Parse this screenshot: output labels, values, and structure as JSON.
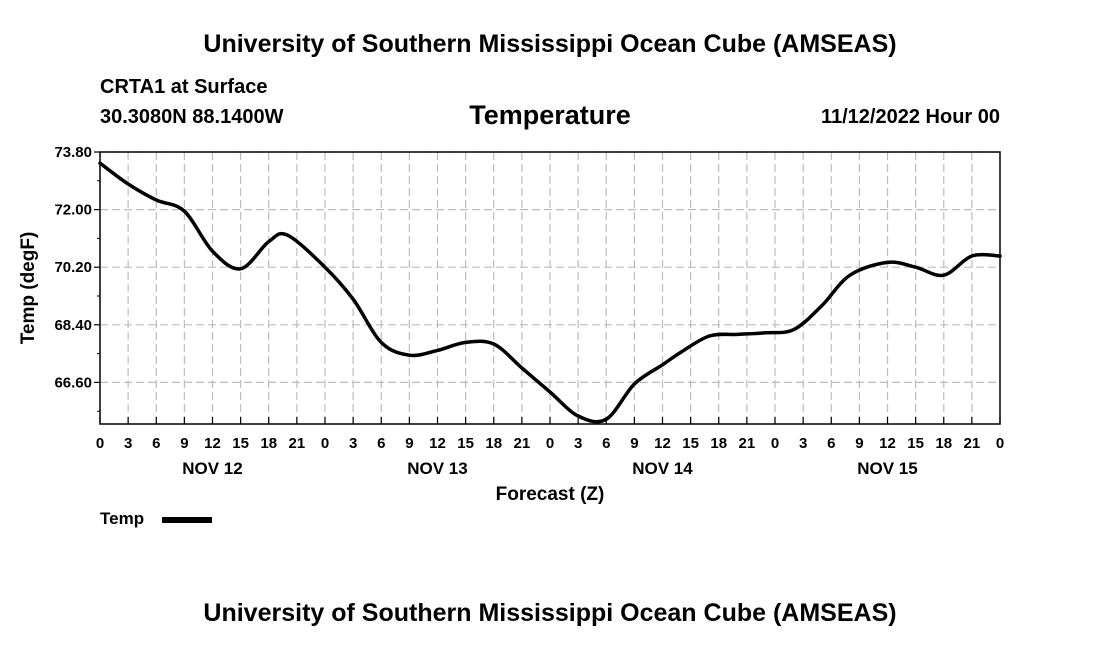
{
  "header": {
    "title": "University of Southern Mississippi Ocean Cube (AMSEAS)",
    "station": "CRTA1 at Surface",
    "coords": "30.3080N  88.1400W",
    "variable": "Temperature",
    "datetime": "11/12/2022 Hour 00"
  },
  "footer": {
    "title": "University of Southern Mississippi Ocean Cube (AMSEAS)"
  },
  "legend": {
    "label": "Temp",
    "color": "#000000"
  },
  "chart_data": {
    "type": "line",
    "title": "Temperature",
    "xlabel": "Forecast (Z)",
    "ylabel": "Temp (degF)",
    "xlim": [
      0,
      96
    ],
    "ylim": [
      65.3,
      73.8
    ],
    "grid": true,
    "yticks": [
      66.6,
      68.4,
      70.2,
      72.0,
      73.8
    ],
    "ytick_labels": [
      "66.60",
      "68.40",
      "70.20",
      "72.00",
      "73.80"
    ],
    "xticks": [
      0,
      3,
      6,
      9,
      12,
      15,
      18,
      21,
      24,
      27,
      30,
      33,
      36,
      39,
      42,
      45,
      48,
      51,
      54,
      57,
      60,
      63,
      66,
      69,
      72,
      75,
      78,
      81,
      84,
      87,
      90,
      93,
      96
    ],
    "xtick_labels": [
      "0",
      "3",
      "6",
      "9",
      "12",
      "15",
      "18",
      "21",
      "0",
      "3",
      "6",
      "9",
      "12",
      "15",
      "18",
      "21",
      "0",
      "3",
      "6",
      "9",
      "12",
      "15",
      "18",
      "21",
      "0",
      "3",
      "6",
      "9",
      "12",
      "15",
      "18",
      "21",
      "0"
    ],
    "day_labels": [
      {
        "x": 12,
        "label": "NOV 12"
      },
      {
        "x": 36,
        "label": "NOV 13"
      },
      {
        "x": 60,
        "label": "NOV 14"
      },
      {
        "x": 84,
        "label": "NOV 15"
      }
    ],
    "series": [
      {
        "name": "Temp",
        "color": "#000000",
        "x": [
          0,
          3,
          6,
          9,
          12,
          15,
          18,
          20,
          24,
          27,
          30,
          33,
          36,
          39,
          42,
          45,
          48,
          51,
          54,
          57,
          60,
          62,
          65,
          68,
          71,
          74,
          77,
          80,
          84,
          87,
          90,
          93,
          96
        ],
        "y": [
          73.45,
          72.8,
          72.3,
          71.95,
          70.7,
          70.15,
          71.0,
          71.2,
          70.2,
          69.2,
          67.85,
          67.45,
          67.6,
          67.85,
          67.8,
          67.05,
          66.3,
          65.55,
          65.45,
          66.55,
          67.15,
          67.55,
          68.05,
          68.1,
          68.15,
          68.25,
          69.0,
          69.95,
          70.35,
          70.2,
          69.95,
          70.55,
          70.55
        ]
      }
    ]
  }
}
